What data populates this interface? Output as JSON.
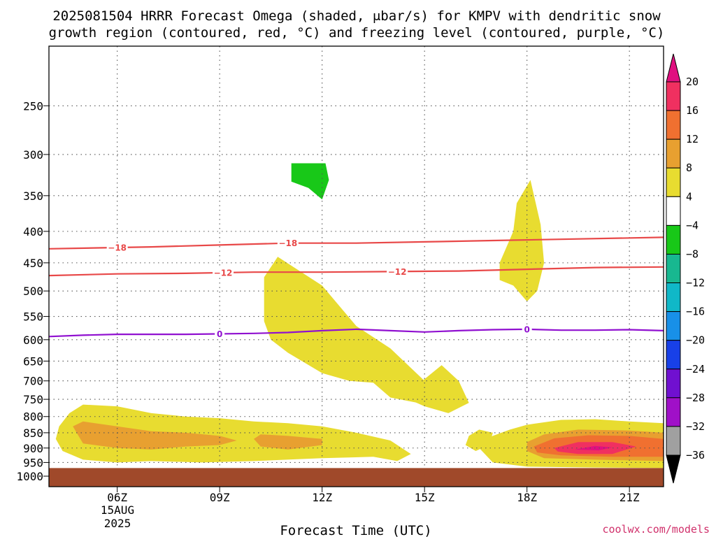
{
  "chart_data": {
    "type": "heatmap",
    "title_line1": "2025081504 HRRR Forecast Omega (shaded, μbar/s) for KMPV with dendritic snow",
    "title_line2": "growth region (contoured, red, °C) and freezing level (contoured, purple, °C)",
    "xlabel": "Forecast Time (UTC)",
    "x_ticks": [
      {
        "hour": 6,
        "label": "06Z"
      },
      {
        "hour": 9,
        "label": "09Z"
      },
      {
        "hour": 12,
        "label": "12Z"
      },
      {
        "hour": 15,
        "label": "15Z"
      },
      {
        "hour": 18,
        "label": "18Z"
      },
      {
        "hour": 21,
        "label": "21Z"
      }
    ],
    "date_label_day": "15AUG",
    "date_label_year": "2025",
    "xlim": [
      4,
      22
    ],
    "y_scale": "log",
    "y_ticks": [
      250,
      300,
      350,
      400,
      450,
      500,
      550,
      600,
      650,
      700,
      750,
      800,
      850,
      900,
      950,
      1000
    ],
    "ylim": [
      1040,
      200
    ],
    "grid": true,
    "colorbar": {
      "labels": [
        "20",
        "16",
        "12",
        "8",
        "4",
        "−4",
        "−8",
        "−12",
        "−16",
        "−20",
        "−24",
        "−28",
        "−32",
        "−36"
      ],
      "colors": [
        "#f03060",
        "#f07030",
        "#e8a030",
        "#e8dc30",
        "#ffffff",
        "#18c818",
        "#18b890",
        "#10b8c8",
        "#1890e8",
        "#1840e8",
        "#7010d0",
        "#a010c8",
        "#a0a0a0"
      ],
      "top_cap_color": "#e01080",
      "bottom_cap_color": "#000000"
    },
    "ground": {
      "color": "#a0492a",
      "from_hpa": 970
    },
    "fill_regions": [
      {
        "color": "#e8dc30",
        "points": [
          [
            4.3,
            830
          ],
          [
            4.6,
            790
          ],
          [
            5.0,
            765
          ],
          [
            6.0,
            770
          ],
          [
            7.0,
            790
          ],
          [
            8.0,
            800
          ],
          [
            9.0,
            805
          ],
          [
            10.0,
            815
          ],
          [
            11.0,
            820
          ],
          [
            12.0,
            830
          ],
          [
            13.0,
            850
          ],
          [
            14.0,
            875
          ],
          [
            14.6,
            920
          ],
          [
            14.2,
            945
          ],
          [
            13.5,
            930
          ],
          [
            12.0,
            935
          ],
          [
            10.0,
            945
          ],
          [
            8.5,
            950
          ],
          [
            7.0,
            945
          ],
          [
            6.0,
            950
          ],
          [
            5.0,
            940
          ],
          [
            4.4,
            910
          ],
          [
            4.2,
            870
          ]
        ]
      },
      {
        "color": "#e8a030",
        "points": [
          [
            4.7,
            830
          ],
          [
            5.0,
            815
          ],
          [
            6.0,
            830
          ],
          [
            7.0,
            845
          ],
          [
            8.0,
            850
          ],
          [
            9.0,
            860
          ],
          [
            9.5,
            875
          ],
          [
            9.0,
            890
          ],
          [
            8.0,
            895
          ],
          [
            7.0,
            905
          ],
          [
            6.0,
            900
          ],
          [
            5.0,
            885
          ]
        ]
      },
      {
        "color": "#e8a030",
        "points": [
          [
            10.2,
            855
          ],
          [
            11.0,
            860
          ],
          [
            12.0,
            870
          ],
          [
            12.0,
            890
          ],
          [
            11.0,
            905
          ],
          [
            10.2,
            895
          ],
          [
            10.0,
            870
          ]
        ]
      },
      {
        "color": "#e8dc30",
        "points": [
          [
            10.7,
            440
          ],
          [
            12.0,
            490
          ],
          [
            13.0,
            570
          ],
          [
            14.0,
            620
          ],
          [
            15.0,
            700
          ],
          [
            14.8,
            760
          ],
          [
            14.0,
            745
          ],
          [
            13.5,
            705
          ],
          [
            12.8,
            700
          ],
          [
            12.0,
            680
          ],
          [
            11.0,
            630
          ],
          [
            10.5,
            600
          ],
          [
            10.3,
            560
          ],
          [
            10.3,
            475
          ]
        ]
      },
      {
        "color": "#e8dc30",
        "points": [
          [
            14.0,
            725
          ],
          [
            14.8,
            710
          ],
          [
            15.5,
            660
          ],
          [
            16.0,
            700
          ],
          [
            16.3,
            760
          ],
          [
            15.7,
            790
          ],
          [
            15.0,
            770
          ],
          [
            14.3,
            740
          ]
        ]
      },
      {
        "color": "#e8dc30",
        "points": [
          [
            16.3,
            860
          ],
          [
            16.6,
            840
          ],
          [
            17.0,
            850
          ],
          [
            16.9,
            890
          ],
          [
            16.5,
            910
          ],
          [
            16.2,
            890
          ]
        ]
      },
      {
        "color": "#e8dc30",
        "points": [
          [
            17.2,
            480
          ],
          [
            17.2,
            450
          ],
          [
            17.6,
            400
          ],
          [
            17.7,
            360
          ],
          [
            18.1,
            330
          ],
          [
            18.4,
            390
          ],
          [
            18.5,
            450
          ],
          [
            18.3,
            500
          ],
          [
            18.0,
            520
          ],
          [
            17.6,
            490
          ]
        ]
      },
      {
        "color": "#e8dc30",
        "points": [
          [
            17.0,
            860
          ],
          [
            17.5,
            840
          ],
          [
            18.0,
            825
          ],
          [
            19.0,
            810
          ],
          [
            20.0,
            808
          ],
          [
            21.0,
            815
          ],
          [
            22.0,
            820
          ],
          [
            22.0,
            970
          ],
          [
            20.0,
            968
          ],
          [
            18.0,
            965
          ],
          [
            17.0,
            950
          ],
          [
            16.6,
            900
          ],
          [
            16.8,
            870
          ]
        ]
      },
      {
        "color": "#e8a030",
        "points": [
          [
            18.0,
            880
          ],
          [
            18.5,
            855
          ],
          [
            19.5,
            840
          ],
          [
            21.0,
            843
          ],
          [
            22.0,
            850
          ],
          [
            22.0,
            945
          ],
          [
            20.0,
            940
          ],
          [
            18.5,
            935
          ],
          [
            18.0,
            910
          ]
        ]
      },
      {
        "color": "#f07030",
        "points": [
          [
            18.2,
            895
          ],
          [
            18.8,
            868
          ],
          [
            19.8,
            858
          ],
          [
            21.0,
            860
          ],
          [
            22.0,
            870
          ],
          [
            22.0,
            930
          ],
          [
            20.5,
            930
          ],
          [
            19.0,
            925
          ],
          [
            18.3,
            915
          ]
        ]
      },
      {
        "color": "#f03060",
        "points": [
          [
            18.8,
            900
          ],
          [
            19.5,
            880
          ],
          [
            20.5,
            880
          ],
          [
            21.2,
            895
          ],
          [
            20.5,
            920
          ],
          [
            19.5,
            920
          ],
          [
            18.9,
            912
          ]
        ]
      },
      {
        "color": "#e01080",
        "points": [
          [
            19.4,
            905
          ],
          [
            20.0,
            893
          ],
          [
            20.5,
            898
          ],
          [
            20.1,
            908
          ]
        ]
      },
      {
        "color": "#18c818",
        "points": [
          [
            11.1,
            310
          ],
          [
            12.1,
            310
          ],
          [
            12.2,
            330
          ],
          [
            12.0,
            355
          ],
          [
            11.6,
            340
          ],
          [
            11.1,
            332
          ]
        ]
      }
    ],
    "contours": [
      {
        "value": -18,
        "color": "#e84848",
        "label": "−18",
        "points": [
          [
            4,
            427
          ],
          [
            7,
            424
          ],
          [
            9,
            421
          ],
          [
            11,
            418
          ],
          [
            13,
            418
          ],
          [
            15,
            416
          ],
          [
            17,
            414
          ],
          [
            19,
            412
          ],
          [
            22,
            409
          ]
        ],
        "label_at": [
          [
            6.0,
            425
          ],
          [
            11.0,
            418
          ]
        ]
      },
      {
        "value": -12,
        "color": "#e84848",
        "label": "−12",
        "points": [
          [
            4,
            472
          ],
          [
            6,
            469
          ],
          [
            8,
            468
          ],
          [
            10,
            466
          ],
          [
            12,
            466
          ],
          [
            14,
            465
          ],
          [
            16,
            464
          ],
          [
            18,
            461
          ],
          [
            20,
            458
          ],
          [
            22,
            457
          ]
        ],
        "label_at": [
          [
            9.1,
            467
          ],
          [
            14.2,
            465
          ]
        ]
      },
      {
        "value": 0,
        "color": "#9010d0",
        "label": "0",
        "points": [
          [
            4,
            593
          ],
          [
            5,
            590
          ],
          [
            6,
            588
          ],
          [
            8,
            588
          ],
          [
            10,
            586
          ],
          [
            11,
            584
          ],
          [
            12,
            580
          ],
          [
            13,
            577
          ],
          [
            14,
            580
          ],
          [
            15,
            583
          ],
          [
            16,
            580
          ],
          [
            17,
            578
          ],
          [
            18,
            577
          ],
          [
            19,
            579
          ],
          [
            20,
            579
          ],
          [
            21,
            578
          ],
          [
            22,
            580
          ]
        ],
        "label_at": [
          [
            9.0,
            587
          ],
          [
            18.0,
            577
          ]
        ]
      }
    ]
  },
  "credit": "coolwx.com/models"
}
